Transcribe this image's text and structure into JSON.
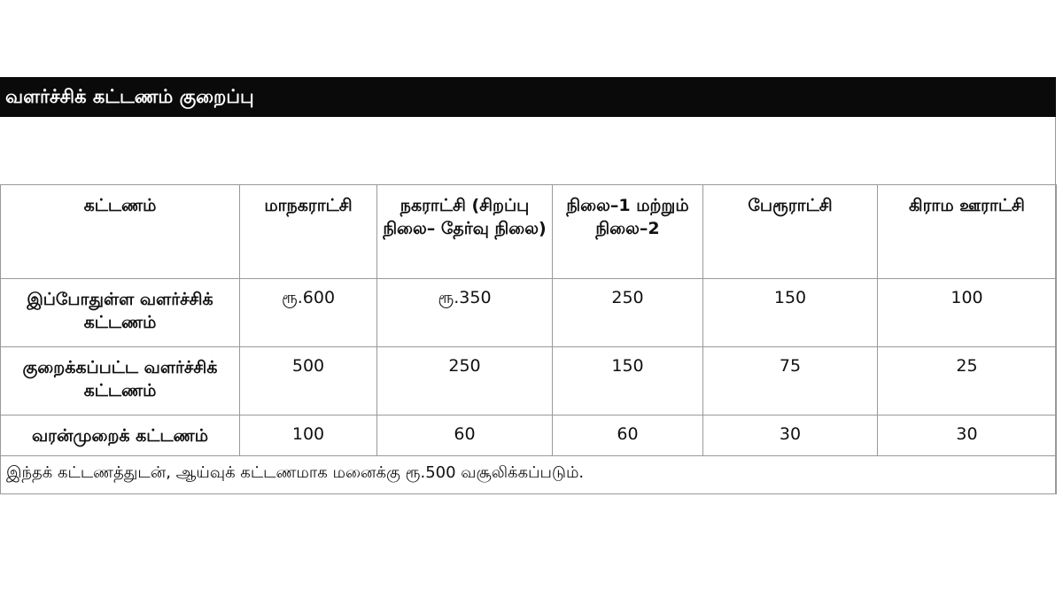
{
  "title": "வளர்ச்சிக் கட்டணம் குறைப்பு",
  "table": {
    "headers": [
      "கட்டணம்",
      "மாநகராட்சி",
      "நகராட்சி (சிறப்பு நிலை– தேர்வு நிலை)",
      "நிலை–1 மற்றும் நிலை–2",
      "பேரூராட்சி",
      "கிராம ஊராட்சி"
    ],
    "rows": [
      {
        "label": "இப்போதுள்ள வளர்ச்சிக் கட்டணம்",
        "values": [
          "ரூ.600",
          "ரூ.350",
          "250",
          "150",
          "100"
        ]
      },
      {
        "label": "குறைக்கப்பட்ட வளர்ச்சிக் கட்டணம்",
        "values": [
          "500",
          "250",
          "150",
          "75",
          "25"
        ]
      },
      {
        "label": "வரன்முறைக் கட்டணம்",
        "values": [
          "100",
          "60",
          "60",
          "30",
          "30"
        ]
      }
    ],
    "note": "இந்தக் கட்டணத்துடன், ஆய்வுக் கட்டணமாக மனைக்கு ரூ.500 வசூலிக்கப்படும்."
  }
}
